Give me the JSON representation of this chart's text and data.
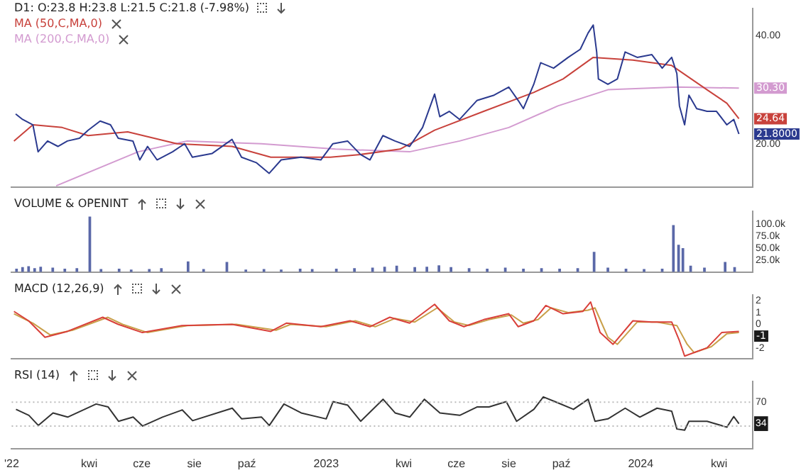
{
  "chart_data": [
    {
      "type": "line",
      "title": "D1: O:23.8 H:23.8 L:21.5 C:21.8 (-7.98%)",
      "legend": "top left",
      "tick_labels": "y",
      "xlim": [
        "2022-01-01",
        "2024-05-10"
      ],
      "ylim": [
        12,
        45
      ],
      "yticks": [
        {
          "value": 20,
          "label": "20.00"
        },
        {
          "value": 40,
          "label": "40.00"
        }
      ],
      "series": [
        {
          "color": "#2b3a8f",
          "x": [
            "2022-01-06",
            "2022-01-14",
            "2022-01-26",
            "2022-02-01",
            "2022-02-12",
            "2022-02-24",
            "2022-03-07",
            "2022-03-21",
            "2022-03-31",
            "2022-04-14",
            "2022-04-26",
            "2022-05-05",
            "2022-05-22",
            "2022-05-30",
            "2022-06-08",
            "2022-06-19",
            "2022-07-07",
            "2022-07-21",
            "2022-07-30",
            "2022-08-22",
            "2022-09-14",
            "2022-09-25",
            "2022-10-12",
            "2022-10-27",
            "2022-11-10",
            "2022-12-03",
            "2022-12-26",
            "2023-01-09",
            "2023-01-26",
            "2023-02-10",
            "2023-02-21",
            "2023-03-08",
            "2023-03-22",
            "2023-04-08",
            "2023-04-23",
            "2023-05-07",
            "2023-05-13",
            "2023-05-24",
            "2023-06-05",
            "2023-06-25",
            "2023-07-15",
            "2023-08-01",
            "2023-08-12",
            "2023-08-18",
            "2023-08-30",
            "2023-09-07",
            "2023-09-22",
            "2023-10-09",
            "2023-10-23",
            "2023-11-01",
            "2023-11-07",
            "2023-11-11",
            "2023-11-13",
            "2023-11-24",
            "2023-12-05",
            "2023-12-14",
            "2023-12-28",
            "2024-01-14",
            "2024-01-26",
            "2024-02-06",
            "2024-02-12",
            "2024-02-15",
            "2024-02-21",
            "2024-02-26",
            "2024-03-06",
            "2024-03-18",
            "2024-03-29",
            "2024-04-10",
            "2024-04-18",
            "2024-04-24"
          ],
          "values": [
            25.5,
            24.5,
            23.5,
            18.5,
            20.5,
            19.5,
            20.5,
            21,
            22.5,
            24.2,
            23.5,
            21,
            20.5,
            17,
            19.5,
            17,
            18.5,
            20,
            17.5,
            18.2,
            20.8,
            17.5,
            16.5,
            14.5,
            17,
            17.5,
            17,
            20,
            20.5,
            18,
            17,
            21.5,
            20.5,
            19.5,
            23,
            29.2,
            25,
            26,
            24.5,
            28,
            29,
            30.5,
            28,
            26.5,
            31,
            35,
            34,
            36,
            37.5,
            40.5,
            42,
            37,
            32,
            31,
            32,
            37,
            36,
            36.5,
            34,
            36,
            33,
            27,
            23.5,
            29,
            26.5,
            26,
            26,
            23.5,
            24.5,
            21.8
          ]
        },
        {
          "name": "MA (50,C,MA,0)",
          "color": "#c8423c",
          "x": [
            "2022-01-04",
            "2022-01-26",
            "2022-03-01",
            "2022-03-31",
            "2022-05-16",
            "2022-07-12",
            "2022-09-14",
            "2022-10-29",
            "2023-01-06",
            "2023-02-10",
            "2023-03-28",
            "2023-05-07",
            "2023-07-03",
            "2023-08-30",
            "2023-10-03",
            "2023-11-07",
            "2023-12-23",
            "2024-02-06",
            "2024-03-18",
            "2024-04-10",
            "2024-04-24"
          ],
          "values": [
            20.5,
            23.5,
            23,
            21.5,
            22.2,
            20,
            19.5,
            17.5,
            17.5,
            18,
            19,
            22.5,
            26,
            29.5,
            32,
            36,
            35.5,
            34.5,
            30,
            27.5,
            24.64
          ]
        },
        {
          "name": "MA (200,C,MA,0)",
          "color": "#d39bd0",
          "x": [
            "2022-02-22",
            "2022-05-28",
            "2022-07-24",
            "2022-10-18",
            "2023-01-12",
            "2023-04-08",
            "2023-06-05",
            "2023-08-01",
            "2023-09-27",
            "2023-11-24",
            "2024-02-12",
            "2024-04-24"
          ],
          "values": [
            12.2,
            18.5,
            20.5,
            20,
            19,
            18.5,
            20.5,
            23,
            27,
            30,
            30.5,
            30.3
          ]
        }
      ],
      "annotations": [
        {
          "text": "30.30",
          "x": "2024-04-24",
          "y": 30.3
        },
        {
          "text": "24.64",
          "x": "2024-04-24",
          "y": 24.64
        },
        {
          "text": "21.8000",
          "x": "2024-04-24",
          "y": 21.8
        }
      ]
    },
    {
      "type": "bar",
      "title": "VOLUME & OPENINT",
      "tick_labels": "y",
      "xlim": [
        "2022-01-01",
        "2024-05-10"
      ],
      "ylim": [
        0,
        127000
      ],
      "yticks": [
        {
          "value": 25000,
          "label": "25.0k"
        },
        {
          "value": 50000,
          "label": "50.0k"
        },
        {
          "value": 75000,
          "label": "75.0k"
        },
        {
          "value": 100000,
          "label": "100.0k"
        }
      ],
      "series": [
        {
          "color": "#5a68a8",
          "x": [
            "2022-01-07",
            "2022-01-14",
            "2022-01-21",
            "2022-01-28",
            "2022-02-04",
            "2022-02-18",
            "2022-03-04",
            "2022-03-18",
            "2022-04-02",
            "2022-04-15",
            "2022-05-06",
            "2022-05-20",
            "2022-06-10",
            "2022-06-24",
            "2022-07-25",
            "2022-08-12",
            "2022-09-08",
            "2022-09-30",
            "2022-10-21",
            "2022-11-10",
            "2022-12-02",
            "2022-12-16",
            "2023-01-13",
            "2023-02-03",
            "2023-02-24",
            "2023-03-10",
            "2023-03-24",
            "2023-04-14",
            "2023-04-28",
            "2023-05-12",
            "2023-05-26",
            "2023-06-16",
            "2023-07-07",
            "2023-07-28",
            "2023-08-18",
            "2023-09-08",
            "2023-09-29",
            "2023-10-20",
            "2023-11-08",
            "2023-11-24",
            "2023-12-15",
            "2024-01-05",
            "2024-01-26",
            "2024-02-08",
            "2024-02-14",
            "2024-02-19",
            "2024-02-28",
            "2024-03-15",
            "2024-04-08",
            "2024-04-19"
          ],
          "values": [
            6000,
            9000,
            11000,
            7000,
            10000,
            8000,
            6000,
            7000,
            115000,
            5000,
            6000,
            4000,
            5000,
            7000,
            21000,
            5000,
            20000,
            4000,
            5000,
            4000,
            6000,
            5000,
            6000,
            7000,
            8000,
            10000,
            12000,
            9000,
            10000,
            13000,
            9000,
            7000,
            6000,
            8000,
            6000,
            7000,
            6000,
            7000,
            41000,
            8000,
            6000,
            5000,
            6000,
            97000,
            56000,
            49000,
            12000,
            8000,
            20000,
            9000
          ]
        }
      ]
    },
    {
      "type": "line",
      "title": "MACD (12,26,9)",
      "tick_labels": "y",
      "xlim": [
        "2022-01-01",
        "2024-05-10"
      ],
      "ylim": [
        -2.9,
        2.5
      ],
      "yticks": [
        -2,
        0,
        1,
        2
      ],
      "series": [
        {
          "color": "#d9403a",
          "x": [
            "2022-01-04",
            "2022-01-21",
            "2022-02-09",
            "2022-03-07",
            "2022-04-17",
            "2022-05-05",
            "2022-06-02",
            "2022-07-18",
            "2022-09-14",
            "2022-10-29",
            "2022-11-16",
            "2022-12-26",
            "2023-01-29",
            "2023-02-21",
            "2023-03-16",
            "2023-04-08",
            "2023-05-07",
            "2023-05-24",
            "2023-06-10",
            "2023-07-03",
            "2023-08-01",
            "2023-08-12",
            "2023-08-30",
            "2023-09-13",
            "2023-10-03",
            "2023-10-26",
            "2023-11-04",
            "2023-11-15",
            "2023-11-30",
            "2023-12-23",
            "2024-01-14",
            "2024-02-06",
            "2024-02-15",
            "2024-02-21",
            "2024-03-18",
            "2024-04-04",
            "2024-04-24"
          ],
          "values": [
            1.1,
            0.3,
            -1.1,
            -0.6,
            0.6,
            0,
            -0.7,
            -0.1,
            0,
            -0.6,
            0.1,
            -0.2,
            0.3,
            -0.2,
            0.6,
            0.1,
            1.7,
            0.3,
            -0.2,
            0.4,
            0.9,
            -0.2,
            0.3,
            1.6,
            0.9,
            1.1,
            1.9,
            -0.7,
            -1.7,
            0.3,
            0.2,
            0.2,
            -1.4,
            -2.7,
            -2.0,
            -0.7,
            -0.6
          ]
        },
        {
          "color": "#c9a04a",
          "x": [
            "2022-01-04",
            "2022-01-26",
            "2022-02-15",
            "2022-03-13",
            "2022-04-23",
            "2022-05-10",
            "2022-06-08",
            "2022-07-24",
            "2022-09-19",
            "2022-11-04",
            "2022-11-21",
            "2023-01-01",
            "2023-02-04",
            "2023-02-27",
            "2023-03-22",
            "2023-04-14",
            "2023-05-10",
            "2023-05-30",
            "2023-06-16",
            "2023-07-09",
            "2023-08-04",
            "2023-08-18",
            "2023-09-04",
            "2023-09-19",
            "2023-10-09",
            "2023-11-01",
            "2023-11-09",
            "2023-11-24",
            "2023-12-05",
            "2023-12-28",
            "2024-01-20",
            "2024-02-12",
            "2024-02-24",
            "2024-03-03",
            "2024-03-23",
            "2024-04-10",
            "2024-04-24"
          ],
          "values": [
            0.9,
            0.1,
            -0.9,
            -0.5,
            0.6,
            0,
            -0.7,
            -0.1,
            0,
            -0.5,
            0,
            -0.2,
            0.3,
            -0.2,
            0.5,
            0.2,
            1.4,
            0.2,
            -0.1,
            0.4,
            0.8,
            0.1,
            0.4,
            1.4,
            1.0,
            1.2,
            1.4,
            -1.1,
            -1.7,
            0.2,
            0.2,
            -0.1,
            -1.7,
            -2.4,
            -1.9,
            -0.8,
            -0.7
          ]
        }
      ],
      "annotations": [
        {
          "text": "-1",
          "x": "2024-04-24",
          "y": -1
        }
      ]
    },
    {
      "type": "line",
      "title": "RSI (14)",
      "xlim": [
        "2022-01-01",
        "2024-05-10"
      ],
      "xticks": [
        {
          "value": "2022-01-01",
          "label": "'22"
        },
        {
          "value": "2022-04-01",
          "label": "kwi"
        },
        {
          "value": "2022-06-01",
          "label": "cze"
        },
        {
          "value": "2022-08-01",
          "label": "sie"
        },
        {
          "value": "2022-10-01",
          "label": "paź"
        },
        {
          "value": "2023-01-01",
          "label": "2023"
        },
        {
          "value": "2023-04-01",
          "label": "kwi"
        },
        {
          "value": "2023-06-01",
          "label": "cze"
        },
        {
          "value": "2023-08-01",
          "label": "sie"
        },
        {
          "value": "2023-10-01",
          "label": "paź"
        },
        {
          "value": "2024-01-01",
          "label": "2024"
        },
        {
          "value": "2024-04-01",
          "label": "kwi"
        }
      ],
      "ylim": [
        -8,
        105
      ],
      "yticks": [
        {
          "value": 34,
          "label": "34"
        },
        70
      ],
      "ref_lines": [
        {
          "axis": "y",
          "value": 70,
          "line_style": "dotted"
        },
        {
          "axis": "y",
          "value": 30,
          "line_style": "dotted"
        }
      ],
      "series": [
        {
          "color": "#333333",
          "x": [
            "2022-01-06",
            "2022-01-21",
            "2022-02-01",
            "2022-02-18",
            "2022-03-07",
            "2022-04-09",
            "2022-04-23",
            "2022-05-05",
            "2022-05-22",
            "2022-06-02",
            "2022-06-25",
            "2022-07-18",
            "2022-07-30",
            "2022-09-14",
            "2022-09-25",
            "2022-10-18",
            "2022-10-27",
            "2022-11-13",
            "2022-12-03",
            "2023-01-01",
            "2023-01-09",
            "2023-01-26",
            "2023-02-10",
            "2023-03-08",
            "2023-03-22",
            "2023-04-08",
            "2023-04-25",
            "2023-05-13",
            "2023-06-05",
            "2023-06-25",
            "2023-07-09",
            "2023-07-29",
            "2023-08-10",
            "2023-08-30",
            "2023-09-10",
            "2023-09-27",
            "2023-10-15",
            "2023-11-01",
            "2023-11-09",
            "2023-11-24",
            "2023-12-14",
            "2023-12-31",
            "2024-01-20",
            "2024-02-06",
            "2024-02-12",
            "2024-02-21",
            "2024-02-26",
            "2024-03-18",
            "2024-04-10",
            "2024-04-18",
            "2024-04-24"
          ],
          "values": [
            58,
            48,
            31,
            52,
            45,
            67,
            62,
            38,
            45,
            30,
            45,
            57,
            39,
            60,
            42,
            45,
            31,
            67,
            52,
            42,
            71,
            65,
            38,
            75,
            52,
            45,
            75,
            52,
            48,
            62,
            62,
            71,
            38,
            58,
            79,
            69,
            58,
            75,
            38,
            42,
            60,
            45,
            60,
            55,
            25,
            23,
            38,
            38,
            28,
            46,
            34
          ]
        }
      ]
    }
  ]
}
